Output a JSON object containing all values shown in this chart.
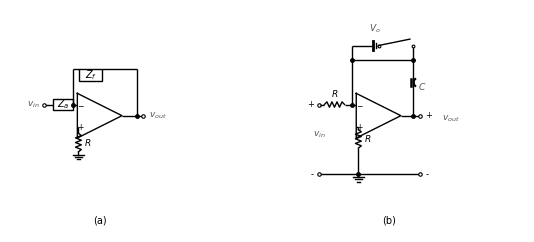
{
  "bg_color": "#ffffff",
  "line_color": "#000000",
  "fig_width": 5.34,
  "fig_height": 2.42,
  "dpi": 100,
  "label_a": "(a)",
  "label_b": "(b)"
}
